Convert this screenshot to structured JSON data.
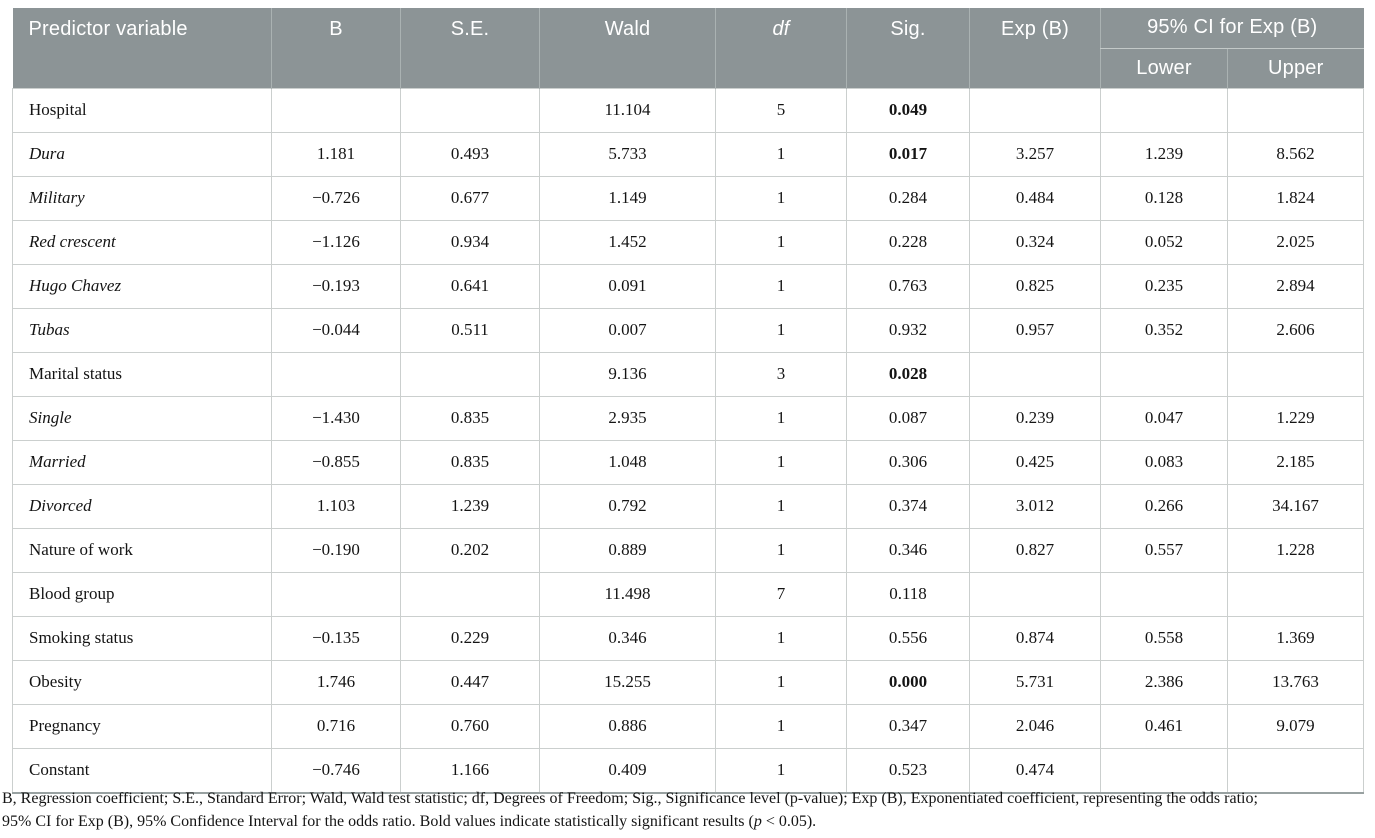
{
  "colors": {
    "header_bg": "#8c9496",
    "header_text": "#ffffff",
    "grid_line": "#cbcfce",
    "header_divider": "#aab2b2",
    "table_bottom_border": "#98a1a1",
    "body_text": "#141414"
  },
  "table": {
    "headers": {
      "predictor": "Predictor variable",
      "b": "B",
      "se": "S.E.",
      "wald": "Wald",
      "df": "df",
      "sig": "Sig.",
      "exp_b": "Exp (B)",
      "ci": "95% CI for Exp (B)",
      "lower": "Lower",
      "upper": "Upper"
    },
    "rows": [
      {
        "label": "Hospital",
        "italic": false,
        "b": "",
        "se": "",
        "wald": "11.104",
        "df": "5",
        "sig": "0.049",
        "sig_bold": true,
        "exp_b": "",
        "lower": "",
        "upper": ""
      },
      {
        "label": "Dura",
        "italic": true,
        "b": "1.181",
        "se": "0.493",
        "wald": "5.733",
        "df": "1",
        "sig": "0.017",
        "sig_bold": true,
        "exp_b": "3.257",
        "lower": "1.239",
        "upper": "8.562"
      },
      {
        "label": "Military",
        "italic": true,
        "b": "−0.726",
        "se": "0.677",
        "wald": "1.149",
        "df": "1",
        "sig": "0.284",
        "sig_bold": false,
        "exp_b": "0.484",
        "lower": "0.128",
        "upper": "1.824"
      },
      {
        "label": "Red crescent",
        "italic": true,
        "b": "−1.126",
        "se": "0.934",
        "wald": "1.452",
        "df": "1",
        "sig": "0.228",
        "sig_bold": false,
        "exp_b": "0.324",
        "lower": "0.052",
        "upper": "2.025"
      },
      {
        "label": "Hugo Chavez",
        "italic": true,
        "b": "−0.193",
        "se": "0.641",
        "wald": "0.091",
        "df": "1",
        "sig": "0.763",
        "sig_bold": false,
        "exp_b": "0.825",
        "lower": "0.235",
        "upper": "2.894"
      },
      {
        "label": "Tubas",
        "italic": true,
        "b": "−0.044",
        "se": "0.511",
        "wald": "0.007",
        "df": "1",
        "sig": "0.932",
        "sig_bold": false,
        "exp_b": "0.957",
        "lower": "0.352",
        "upper": "2.606"
      },
      {
        "label": "Marital status",
        "italic": false,
        "b": "",
        "se": "",
        "wald": "9.136",
        "df": "3",
        "sig": "0.028",
        "sig_bold": true,
        "exp_b": "",
        "lower": "",
        "upper": ""
      },
      {
        "label": "Single",
        "italic": true,
        "b": "−1.430",
        "se": "0.835",
        "wald": "2.935",
        "df": "1",
        "sig": "0.087",
        "sig_bold": false,
        "exp_b": "0.239",
        "lower": "0.047",
        "upper": "1.229"
      },
      {
        "label": "Married",
        "italic": true,
        "b": "−0.855",
        "se": "0.835",
        "wald": "1.048",
        "df": "1",
        "sig": "0.306",
        "sig_bold": false,
        "exp_b": "0.425",
        "lower": "0.083",
        "upper": "2.185"
      },
      {
        "label": "Divorced",
        "italic": true,
        "b": "1.103",
        "se": "1.239",
        "wald": "0.792",
        "df": "1",
        "sig": "0.374",
        "sig_bold": false,
        "exp_b": "3.012",
        "lower": "0.266",
        "upper": "34.167"
      },
      {
        "label": "Nature of work",
        "italic": false,
        "b": "−0.190",
        "se": "0.202",
        "wald": "0.889",
        "df": "1",
        "sig": "0.346",
        "sig_bold": false,
        "exp_b": "0.827",
        "lower": "0.557",
        "upper": "1.228"
      },
      {
        "label": "Blood group",
        "italic": false,
        "b": "",
        "se": "",
        "wald": "11.498",
        "df": "7",
        "sig": "0.118",
        "sig_bold": false,
        "exp_b": "",
        "lower": "",
        "upper": ""
      },
      {
        "label": "Smoking status",
        "italic": false,
        "b": "−0.135",
        "se": "0.229",
        "wald": "0.346",
        "df": "1",
        "sig": "0.556",
        "sig_bold": false,
        "exp_b": "0.874",
        "lower": "0.558",
        "upper": "1.369"
      },
      {
        "label": "Obesity",
        "italic": false,
        "b": "1.746",
        "se": "0.447",
        "wald": "15.255",
        "df": "1",
        "sig": "0.000",
        "sig_bold": true,
        "exp_b": "5.731",
        "lower": "2.386",
        "upper": "13.763"
      },
      {
        "label": "Pregnancy",
        "italic": false,
        "b": "0.716",
        "se": "0.760",
        "wald": "0.886",
        "df": "1",
        "sig": "0.347",
        "sig_bold": false,
        "exp_b": "2.046",
        "lower": "0.461",
        "upper": "9.079"
      },
      {
        "label": "Constant",
        "italic": false,
        "b": "−0.746",
        "se": "1.166",
        "wald": "0.409",
        "df": "1",
        "sig": "0.523",
        "sig_bold": false,
        "exp_b": "0.474",
        "lower": "",
        "upper": ""
      }
    ],
    "footnote": {
      "line1": "B, Regression coefficient; S.E., Standard Error; Wald, Wald test statistic; df, Degrees of Freedom; Sig., Significance level (p-value); Exp (B), Exponentiated coefficient, representing the odds ratio;",
      "line2_pre": "95% CI for Exp (B), 95% Confidence Interval for the odds ratio. Bold values indicate statistically significant results (",
      "p_symbol": "p",
      "line2_post": " < 0.05)."
    }
  }
}
